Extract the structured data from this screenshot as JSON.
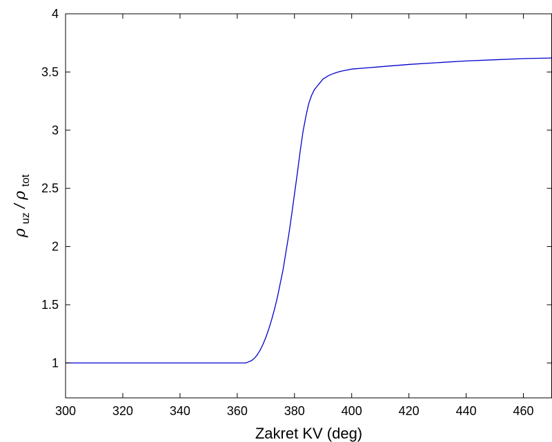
{
  "chart_data": {
    "type": "line",
    "title": "",
    "xlabel": "Zakret KV (deg)",
    "ylabel": {
      "sym1": "ρ",
      "sub1": "uz",
      "sep": "/",
      "sym2": "ρ",
      "sub2": "tot"
    },
    "xlim": [
      300,
      470
    ],
    "ylim": [
      0.7,
      4
    ],
    "grid": false,
    "xticks": [
      300,
      320,
      340,
      360,
      380,
      400,
      420,
      440,
      460
    ],
    "yticks": [
      1,
      1.5,
      2,
      2.5,
      3,
      3.5,
      4
    ],
    "xtick_labels": [
      "300",
      "320",
      "340",
      "360",
      "380",
      "400",
      "420",
      "440",
      "460"
    ],
    "ytick_labels": [
      "1",
      "1.5",
      "2",
      "2.5",
      "3",
      "3.5",
      "4"
    ],
    "series": [
      {
        "color": "#0000cc",
        "x": [
          300,
          310,
          320,
          330,
          340,
          350,
          360,
          363,
          364,
          365,
          366,
          367,
          368,
          369,
          370,
          371,
          372,
          373,
          374,
          375,
          376,
          377,
          378,
          379,
          380,
          381,
          382,
          383,
          384,
          385,
          386,
          387,
          388,
          389,
          390,
          392,
          394,
          396,
          398,
          400,
          405,
          410,
          420,
          430,
          440,
          450,
          460,
          470
        ],
        "y": [
          1,
          1,
          1,
          1,
          1,
          1,
          1,
          1.0,
          1.01,
          1.02,
          1.04,
          1.07,
          1.11,
          1.16,
          1.22,
          1.29,
          1.37,
          1.46,
          1.56,
          1.68,
          1.8,
          1.95,
          2.1,
          2.27,
          2.45,
          2.63,
          2.82,
          2.99,
          3.12,
          3.23,
          3.3,
          3.35,
          3.38,
          3.41,
          3.44,
          3.47,
          3.49,
          3.505,
          3.515,
          3.525,
          3.535,
          3.545,
          3.565,
          3.58,
          3.595,
          3.605,
          3.615,
          3.62
        ]
      }
    ]
  }
}
